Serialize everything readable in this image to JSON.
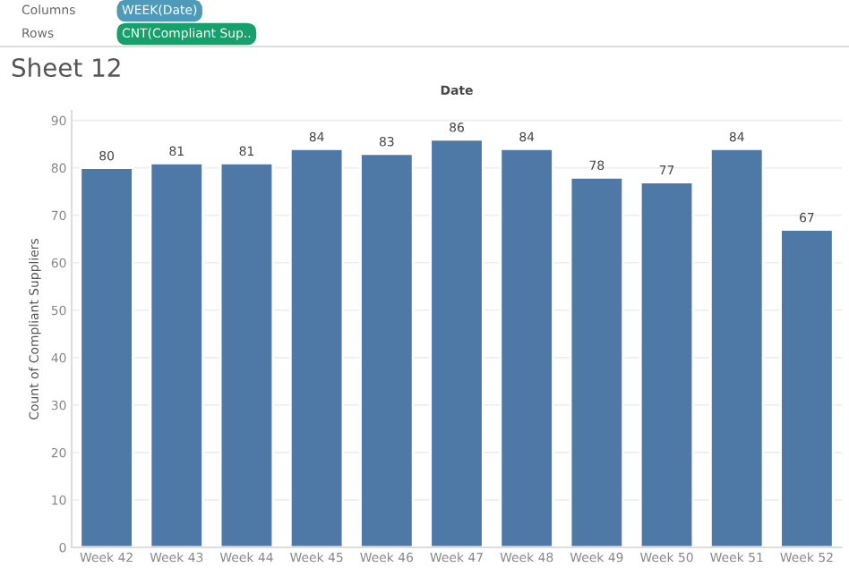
{
  "chart_data": {
    "type": "bar",
    "title": "Sheet 12",
    "xlabel": "Date",
    "ylabel": "Count of Compliant Suppliers",
    "annotations": [
      "Columns",
      "WEEK(Date)",
      "Rows",
      "CNT(Compliant Sup.."
    ],
    "categories": [
      "Week 42",
      "Week 43",
      "Week 44",
      "Week 45",
      "Week 46",
      "Week 47",
      "Week 48",
      "Week 49",
      "Week 50",
      "Week 51",
      "Week 52"
    ],
    "values": [
      80,
      81,
      81,
      84,
      83,
      86,
      84,
      78,
      77,
      84,
      67
    ],
    "color": "#4e79a7",
    "data_labels": true,
    "ylim": [
      0,
      92
    ],
    "yticks": [
      0,
      10,
      20,
      30,
      40,
      50,
      60,
      70,
      80,
      90
    ],
    "grid": "y"
  }
}
